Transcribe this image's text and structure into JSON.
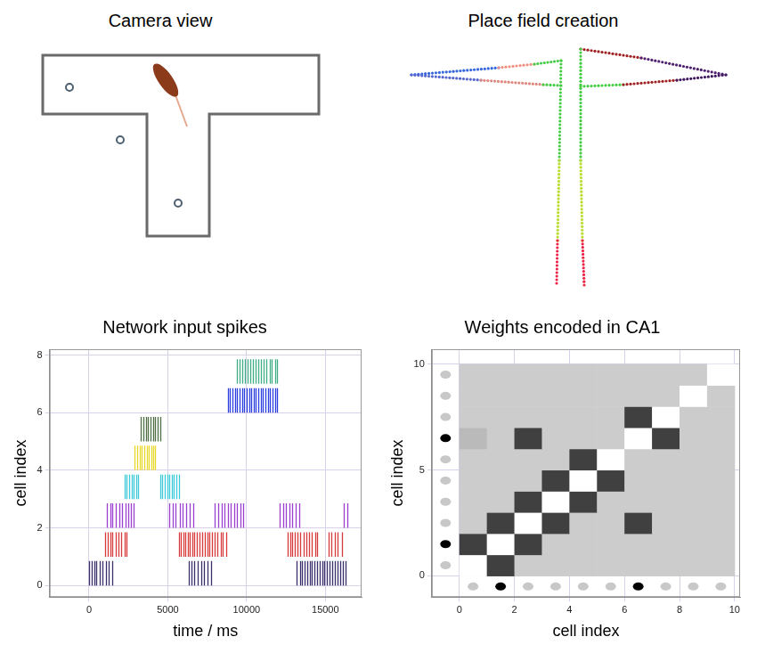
{
  "diagrams": [
    {
      "title": "Camera view"
    },
    {
      "title": "Place field creation"
    }
  ],
  "chart_data": [
    {
      "type": "raster",
      "title": "Network input spikes",
      "x_label": "time / ms",
      "y_label": "cell index",
      "xlim": [
        -2500,
        17300
      ],
      "xticks": [
        0,
        5000,
        10000,
        15000
      ],
      "ylim": [
        -0.4,
        8.2
      ],
      "yticks": [
        0,
        2,
        4,
        6,
        8
      ],
      "grid": true,
      "series": [
        {
          "cell": 0,
          "color": "#3b2f6b",
          "spike_times": [
            0,
            150,
            330,
            480,
            700,
            860,
            1050,
            1250,
            1450,
            6350,
            6520,
            6700,
            6900,
            7100,
            7300,
            7500,
            7720,
            13200,
            13380,
            13520,
            13700,
            13850,
            14000,
            14150,
            14300,
            14480,
            14650,
            14800,
            14950,
            15100,
            15280,
            15450,
            15600,
            15780,
            15950,
            16100,
            16280
          ]
        },
        {
          "cell": 1,
          "color": "#d63a3a",
          "spike_times": [
            1000,
            1180,
            1350,
            1500,
            1700,
            1850,
            2050,
            2250,
            2400,
            5700,
            5850,
            6000,
            6100,
            6250,
            6400,
            6550,
            6700,
            6850,
            7000,
            7200,
            7350,
            7500,
            7650,
            7800,
            8000,
            8150,
            8350,
            8500,
            8700,
            12600,
            12750,
            12900,
            13050,
            13250,
            13400,
            13600,
            13800,
            13950,
            14150,
            14350,
            14500,
            15200,
            15400,
            15600,
            15800,
            16050
          ]
        },
        {
          "cell": 2,
          "color": "#9a3fd0",
          "spike_times": [
            1150,
            1350,
            1500,
            1700,
            1900,
            2100,
            2300,
            2500,
            2650,
            2850,
            5100,
            5300,
            5500,
            5750,
            5950,
            6150,
            6400,
            6600,
            8000,
            8200,
            8400,
            8600,
            8800,
            9000,
            9200,
            9400,
            9600,
            9800,
            12100,
            12300,
            12500,
            12700,
            12900,
            13100,
            13350,
            16150,
            16400
          ]
        },
        {
          "cell": 3,
          "color": "#3cc8d8",
          "spike_times": [
            2250,
            2400,
            2550,
            2700,
            2850,
            3000,
            3100,
            4500,
            4650,
            4800,
            4950,
            5100,
            5250,
            5400,
            5550,
            5700
          ]
        },
        {
          "cell": 4,
          "color": "#e8d82a",
          "spike_times": [
            2880,
            3050,
            3200,
            3350,
            3500,
            3650,
            3800,
            3950,
            4100,
            4200
          ]
        },
        {
          "cell": 5,
          "color": "#4f6e43",
          "spike_times": [
            3300,
            3450,
            3600,
            3750,
            3900,
            4050,
            4200,
            4350,
            4500
          ]
        },
        {
          "cell": 6,
          "color": "#2a3ee0",
          "spike_times": [
            8800,
            8950,
            9100,
            9250,
            9400,
            9550,
            9700,
            9850,
            10000,
            10150,
            10300,
            10450,
            10600,
            10750,
            10900,
            11050,
            11200,
            11350,
            11500,
            11650,
            11800,
            11950
          ]
        },
        {
          "cell": 7,
          "color": "#3fae84",
          "spike_times": [
            9400,
            9550,
            9750,
            9900,
            10050,
            10250,
            10400,
            10550,
            10750,
            10900,
            11100,
            11250,
            11450,
            11600,
            11800,
            11950
          ]
        }
      ]
    },
    {
      "type": "heatmap",
      "title": "Weights encoded in CA1",
      "x_label": "cell index",
      "y_label": "cell index",
      "xlim": [
        -1,
        10.2
      ],
      "xticks": [
        0,
        2,
        4,
        6,
        8,
        10
      ],
      "ylim": [
        -1,
        10.7
      ],
      "yticks": [
        0,
        5,
        10
      ],
      "grid": true,
      "zlim": [
        0,
        1
      ],
      "cells": [
        [
          0,
          0.75,
          0.2,
          0.2,
          0.2,
          0.2,
          0.2,
          0.2,
          0.2,
          0.2
        ],
        [
          0.75,
          0,
          0.75,
          0.2,
          0.2,
          0.2,
          0.2,
          0.2,
          0.2,
          0.2
        ],
        [
          0.2,
          0.75,
          0,
          0.75,
          0.2,
          0.2,
          0.75,
          0.2,
          0.2,
          0.2
        ],
        [
          0.2,
          0.2,
          0.75,
          0,
          0.75,
          0.2,
          0.2,
          0.2,
          0.2,
          0.2
        ],
        [
          0.2,
          0.2,
          0.2,
          0.75,
          0,
          0.75,
          0.2,
          0.2,
          0.2,
          0.2
        ],
        [
          0.2,
          0.2,
          0.2,
          0.2,
          0.75,
          0,
          0.2,
          0.2,
          0.2,
          0.2
        ],
        [
          0.27,
          0.2,
          0.75,
          0.2,
          0.2,
          0.2,
          0,
          0.75,
          0.2,
          0.2
        ],
        [
          0.2,
          0.2,
          0.2,
          0.2,
          0.2,
          0.2,
          0.75,
          0,
          0.2,
          0.2
        ],
        [
          0.2,
          0.2,
          0.2,
          0.2,
          0.2,
          0.2,
          0.2,
          0.2,
          0,
          0.2
        ],
        [
          0.2,
          0.2,
          0.2,
          0.2,
          0.2,
          0.2,
          0.2,
          0.2,
          0.2,
          0
        ]
      ],
      "inputs_x": [
        0,
        1,
        0,
        0,
        0,
        0,
        1,
        0,
        0,
        0
      ],
      "inputs_y": [
        0,
        1,
        0,
        0,
        0,
        0,
        1,
        0,
        0,
        0
      ]
    }
  ]
}
